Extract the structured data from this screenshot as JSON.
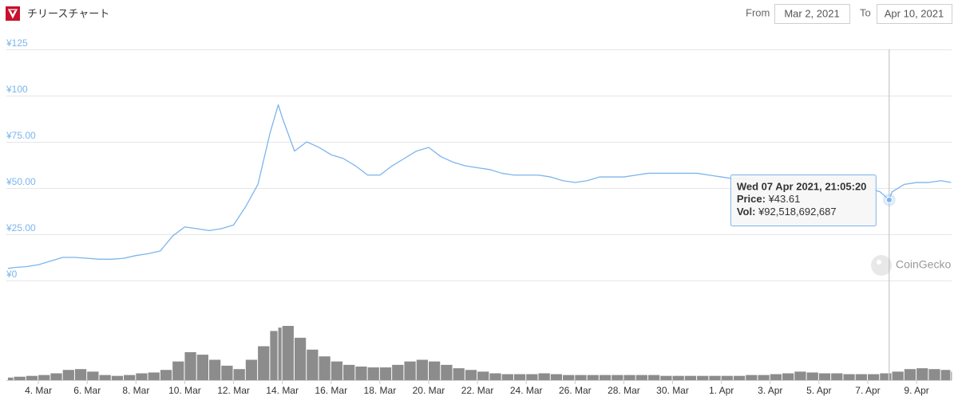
{
  "header": {
    "title": "チリースチャート",
    "from_label": "From",
    "from_value": "Mar 2, 2021",
    "to_label": "To",
    "to_value": "Apr 10, 2021"
  },
  "chart_data": {
    "type": "line",
    "x": [
      "2021-03-02T18:00",
      "2021-03-03T00:00",
      "2021-03-03T12:00",
      "2021-03-04T00:00",
      "2021-03-04T12:00",
      "2021-03-05T00:00",
      "2021-03-05T12:00",
      "2021-03-06T00:00",
      "2021-03-06T12:00",
      "2021-03-07T00:00",
      "2021-03-07T12:00",
      "2021-03-08T00:00",
      "2021-03-08T12:00",
      "2021-03-09T00:00",
      "2021-03-09T12:00",
      "2021-03-10T00:00",
      "2021-03-10T12:00",
      "2021-03-11T00:00",
      "2021-03-11T12:00",
      "2021-03-12T00:00",
      "2021-03-12T12:00",
      "2021-03-13T00:00",
      "2021-03-13T12:00",
      "2021-03-13T20:00",
      "2021-03-14T00:00",
      "2021-03-14T12:00",
      "2021-03-15T00:00",
      "2021-03-15T12:00",
      "2021-03-16T00:00",
      "2021-03-16T12:00",
      "2021-03-17T00:00",
      "2021-03-17T12:00",
      "2021-03-18T00:00",
      "2021-03-18T12:00",
      "2021-03-19T00:00",
      "2021-03-19T12:00",
      "2021-03-20T00:00",
      "2021-03-20T12:00",
      "2021-03-21T00:00",
      "2021-03-21T12:00",
      "2021-03-22T00:00",
      "2021-03-22T12:00",
      "2021-03-23T00:00",
      "2021-03-23T12:00",
      "2021-03-24T00:00",
      "2021-03-24T12:00",
      "2021-03-25T00:00",
      "2021-03-25T12:00",
      "2021-03-26T00:00",
      "2021-03-26T12:00",
      "2021-03-27T00:00",
      "2021-03-27T12:00",
      "2021-03-28T00:00",
      "2021-03-28T12:00",
      "2021-03-29T00:00",
      "2021-03-29T12:00",
      "2021-03-30T00:00",
      "2021-03-30T12:00",
      "2021-03-31T00:00",
      "2021-03-31T12:00",
      "2021-04-01T00:00",
      "2021-04-01T12:00",
      "2021-04-02T00:00",
      "2021-04-02T12:00",
      "2021-04-03T00:00",
      "2021-04-03T12:00",
      "2021-04-04T00:00",
      "2021-04-04T12:00",
      "2021-04-05T00:00",
      "2021-04-05T12:00",
      "2021-04-06T00:00",
      "2021-04-06T12:00",
      "2021-04-07T00:00",
      "2021-04-07T12:00",
      "2021-04-07T21:05:20",
      "2021-04-08T00:00",
      "2021-04-08T12:00",
      "2021-04-09T00:00",
      "2021-04-09T12:00",
      "2021-04-10T00:00",
      "2021-04-10T10:00"
    ],
    "price": {
      "color": "#7cb5ec",
      "values": [
        6.5,
        7,
        7.5,
        8.5,
        10.5,
        12.5,
        12.5,
        12,
        11.5,
        11.5,
        12,
        13.5,
        14.5,
        16,
        24,
        29,
        28,
        27,
        28,
        30,
        40,
        52,
        80,
        95,
        88,
        70,
        75,
        72,
        68,
        66,
        62,
        57,
        57,
        62,
        66,
        70,
        72,
        67,
        64,
        62,
        61,
        60,
        58,
        57,
        57,
        57,
        56,
        54,
        53,
        54,
        56,
        56,
        56,
        57,
        58,
        58,
        58,
        58,
        58,
        57,
        56,
        55,
        55,
        54,
        54,
        54,
        53,
        53,
        53,
        52,
        52,
        51,
        50,
        48,
        43.61,
        48,
        52,
        53,
        53,
        54,
        53
      ]
    },
    "volume": {
      "color": "#8c8c8c",
      "values": [
        34500000000,
        46000000000,
        57500000000,
        69000000000,
        92000000000,
        138000000000,
        149500000000,
        115000000000,
        69000000000,
        57500000000,
        69000000000,
        92000000000,
        103500000000,
        138000000000,
        253000000000,
        379500000000,
        345000000000,
        276000000000,
        195500000000,
        149500000000,
        276000000000,
        460000000000,
        667000000000,
        713000000000,
        736000000000,
        575000000000,
        414000000000,
        322000000000,
        253000000000,
        207000000000,
        184000000000,
        172500000000,
        172500000000,
        207000000000,
        253000000000,
        276000000000,
        253000000000,
        207000000000,
        161000000000,
        138000000000,
        115000000000,
        92000000000,
        80500000000,
        80500000000,
        80500000000,
        92000000000,
        80500000000,
        69000000000,
        69000000000,
        69000000000,
        69000000000,
        69000000000,
        69000000000,
        69000000000,
        69000000000,
        57500000000,
        57500000000,
        57500000000,
        57500000000,
        57500000000,
        57500000000,
        57500000000,
        69000000000,
        69000000000,
        80500000000,
        92000000000,
        115000000000,
        103500000000,
        92000000000,
        92000000000,
        80500000000,
        80500000000,
        80500000000,
        92000000000,
        92518692687,
        115000000000,
        149500000000,
        161000000000,
        149500000000,
        138000000000,
        115000000000
      ]
    },
    "xlim": [
      "2021-03-02T16:30",
      "2021-04-10T10:30"
    ],
    "xticks": [
      {
        "value": "2021-03-04T00:00",
        "label": "4. Mar"
      },
      {
        "value": "2021-03-06T00:00",
        "label": "6. Mar"
      },
      {
        "value": "2021-03-08T00:00",
        "label": "8. Mar"
      },
      {
        "value": "2021-03-10T00:00",
        "label": "10. Mar"
      },
      {
        "value": "2021-03-12T00:00",
        "label": "12. Mar"
      },
      {
        "value": "2021-03-14T00:00",
        "label": "14. Mar"
      },
      {
        "value": "2021-03-16T00:00",
        "label": "16. Mar"
      },
      {
        "value": "2021-03-18T00:00",
        "label": "18. Mar"
      },
      {
        "value": "2021-03-20T00:00",
        "label": "20. Mar"
      },
      {
        "value": "2021-03-22T00:00",
        "label": "22. Mar"
      },
      {
        "value": "2021-03-24T00:00",
        "label": "24. Mar"
      },
      {
        "value": "2021-03-26T00:00",
        "label": "26. Mar"
      },
      {
        "value": "2021-03-28T00:00",
        "label": "28. Mar"
      },
      {
        "value": "2021-03-30T00:00",
        "label": "30. Mar"
      },
      {
        "value": "2021-04-01T00:00",
        "label": "1. Apr"
      },
      {
        "value": "2021-04-03T00:00",
        "label": "3. Apr"
      },
      {
        "value": "2021-04-05T00:00",
        "label": "5. Apr"
      },
      {
        "value": "2021-04-07T00:00",
        "label": "7. Apr"
      },
      {
        "value": "2021-04-09T00:00",
        "label": "9. Apr"
      }
    ],
    "ylim": [
      0,
      125
    ],
    "yticks": [
      {
        "value": 0,
        "label": "¥0"
      },
      {
        "value": 25,
        "label": "¥25.00"
      },
      {
        "value": 50,
        "label": "¥50.00"
      },
      {
        "value": 75,
        "label": "¥75.00"
      },
      {
        "value": 100,
        "label": "¥100"
      },
      {
        "value": 125,
        "label": "¥125"
      }
    ],
    "grid": true,
    "highlight": {
      "x": "2021-04-07T21:05:20",
      "value": 43.61,
      "title": "Wed 07 Apr 2021, 21:05:20",
      "price_name": "Price:",
      "value_label": "¥43.61",
      "volume_name": "Vol:",
      "volume_label": "¥92,518,692,687"
    },
    "watermark": "CoinGecko"
  }
}
